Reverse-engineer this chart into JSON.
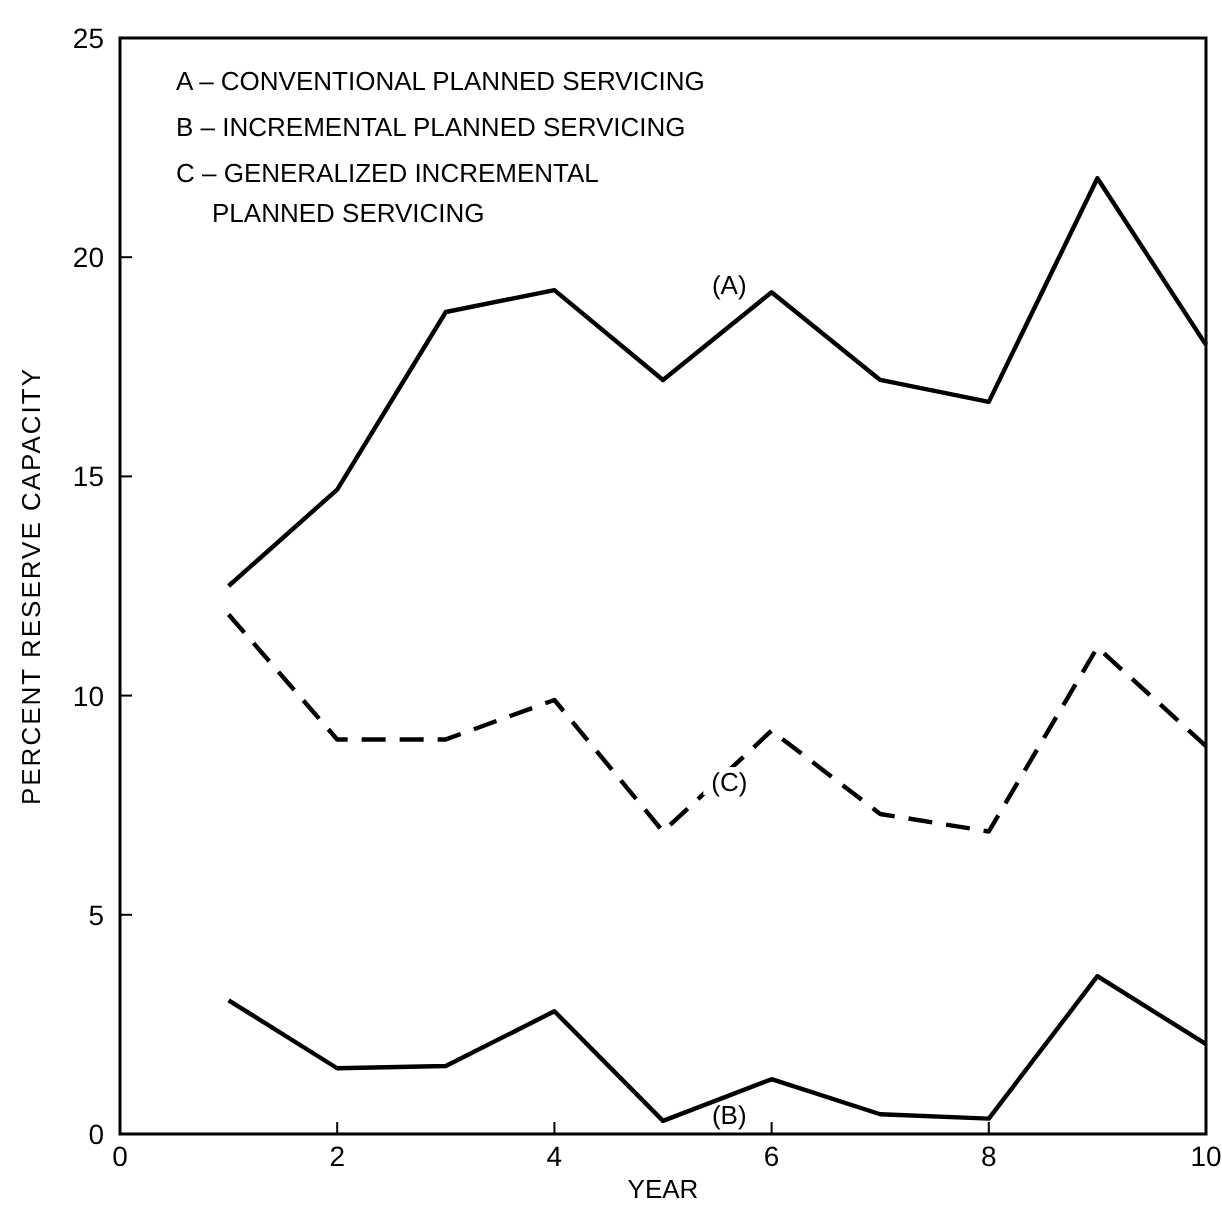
{
  "chart_data": {
    "type": "line",
    "xlabel": "YEAR",
    "ylabel": "PERCENT RESERVE CAPACITY",
    "x": [
      1,
      2,
      3,
      4,
      5,
      6,
      7,
      8,
      9,
      10
    ],
    "xlim": [
      0,
      10
    ],
    "ylim": [
      0,
      25
    ],
    "xticks": [
      0,
      2,
      4,
      6,
      8,
      10
    ],
    "yticks": [
      0,
      5,
      10,
      15,
      20,
      25
    ],
    "grid": false,
    "marker": "none",
    "series": [
      {
        "name": "(A)",
        "color": "#000000",
        "line_style": "solid",
        "values": [
          12.5,
          14.7,
          18.75,
          19.25,
          17.2,
          19.2,
          17.2,
          16.7,
          21.8,
          18.0
        ]
      },
      {
        "name": "(B)",
        "color": "#000000",
        "line_style": "solid",
        "values": [
          3.05,
          1.5,
          1.55,
          2.8,
          0.3,
          1.25,
          0.45,
          0.35,
          3.6,
          2.05
        ]
      },
      {
        "name": "(C)",
        "color": "#000000",
        "line_style": "dashed",
        "values": [
          11.85,
          9.0,
          9.0,
          9.9,
          6.9,
          9.2,
          7.3,
          6.9,
          11.1,
          8.85
        ]
      }
    ],
    "annotations": [
      "A – CONVENTIONAL PLANNED SERVICING",
      "B – INCREMENTAL PLANNED SERVICING",
      "C – GENERALIZED INCREMENTAL PLANNED SERVICING"
    ]
  }
}
